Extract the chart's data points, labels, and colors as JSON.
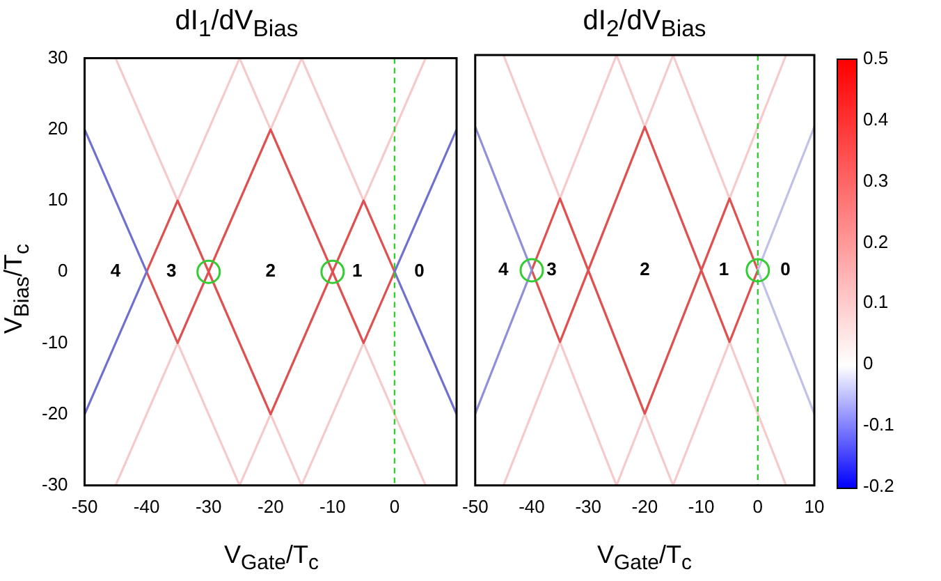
{
  "chart_data": [
    {
      "type": "line",
      "title": "dI$_{1}$/dV$_{Bias}$",
      "xlabel": "V$_{Gate}$/T$_{c}$",
      "ylabel": "V$_{Bias}$/T$_{c}$",
      "xlim": [
        -50,
        10
      ],
      "xticks": [
        -50,
        -40,
        -30,
        -20,
        -10,
        0
      ],
      "ylim": [
        -30,
        30
      ],
      "yticks": [
        -30,
        -20,
        -10,
        0,
        10,
        20,
        30
      ],
      "grid": false,
      "legend": false,
      "ref_lines": [
        {
          "axis": "x",
          "value": 0,
          "color": "#33cc33",
          "line_style": "dashed"
        }
      ],
      "annotations": [
        "4",
        "3",
        "2",
        "1",
        "0"
      ],
      "series": [
        {
          "color": "#f6caca",
          "x": [
            -15,
            -5
          ],
          "values": [
            30,
            10
          ]
        },
        {
          "color": "#f6caca",
          "x": [
            -15,
            -5
          ],
          "values": [
            -30,
            -10
          ]
        },
        {
          "color": "#f6caca",
          "x": [
            -25,
            5
          ],
          "values": [
            30,
            -30
          ]
        },
        {
          "color": "#f6caca",
          "x": [
            -25,
            5
          ],
          "values": [
            -30,
            30
          ]
        },
        {
          "color": "#f6caca",
          "x": [
            -45,
            -15
          ],
          "values": [
            30,
            -30
          ]
        },
        {
          "color": "#f6caca",
          "x": [
            -45,
            -15
          ],
          "values": [
            -30,
            30
          ]
        },
        {
          "color": "#f6caca",
          "x": [
            -35,
            -25
          ],
          "values": [
            -10,
            -30
          ]
        },
        {
          "color": "#f6caca",
          "x": [
            -35,
            -25
          ],
          "values": [
            10,
            30
          ]
        },
        {
          "color": "#e05050",
          "x": [
            -40,
            -35,
            -30,
            -20,
            -10,
            -5,
            0
          ],
          "values": [
            0,
            10,
            0,
            20,
            0,
            10,
            0
          ]
        },
        {
          "color": "#e05050",
          "x": [
            -40,
            -35,
            -30,
            -20,
            -10,
            -5,
            0
          ],
          "values": [
            0,
            -10,
            0,
            -20,
            0,
            -10,
            0
          ]
        },
        {
          "color": "#7070d0",
          "x": [
            -50,
            -40,
            -50
          ],
          "values": [
            20,
            0,
            -20
          ]
        },
        {
          "color": "#7070d0",
          "x": [
            10,
            0,
            10
          ],
          "values": [
            20,
            0,
            -20
          ]
        },
        {
          "type": "scatter",
          "marker": "circle",
          "color": "#33cc33",
          "x": [
            -30,
            -10
          ],
          "values": [
            0,
            0
          ]
        }
      ]
    },
    {
      "type": "line",
      "title": "dI$_{2}$/dV$_{Bias}$",
      "xlabel": "V$_{Gate}$/T$_{c}$",
      "xlim": [
        -50,
        10
      ],
      "xticks": [
        -50,
        -40,
        -30,
        -20,
        -10,
        0,
        10
      ],
      "ylim": [
        -30,
        30
      ],
      "yticks": [
        -30,
        -20,
        -10,
        0,
        10,
        20,
        30
      ],
      "tick_labels": "x",
      "grid": false,
      "legend": false,
      "clim": [
        -0.2,
        0.5
      ],
      "cticks": [
        -0.2,
        -0.1,
        0,
        0.1,
        0.2,
        0.3,
        0.4,
        0.5
      ],
      "ref_lines": [
        {
          "axis": "x",
          "value": 0,
          "color": "#33cc33",
          "line_style": "dashed"
        }
      ],
      "annotations": [
        "4",
        "3",
        "2",
        "1",
        "0"
      ],
      "series": [
        {
          "color": "#f6caca",
          "x": [
            -15,
            -5
          ],
          "values": [
            30,
            10
          ]
        },
        {
          "color": "#f6caca",
          "x": [
            -15,
            -5
          ],
          "values": [
            -30,
            -10
          ]
        },
        {
          "color": "#f6caca",
          "x": [
            -25,
            5
          ],
          "values": [
            30,
            -30
          ]
        },
        {
          "color": "#f6caca",
          "x": [
            -25,
            5
          ],
          "values": [
            -30,
            30
          ]
        },
        {
          "color": "#f6caca",
          "x": [
            -45,
            -15
          ],
          "values": [
            30,
            -30
          ]
        },
        {
          "color": "#f6caca",
          "x": [
            -45,
            -15
          ],
          "values": [
            -30,
            30
          ]
        },
        {
          "color": "#f6caca",
          "x": [
            -35,
            -25
          ],
          "values": [
            -10,
            -30
          ]
        },
        {
          "color": "#f6caca",
          "x": [
            -35,
            -25
          ],
          "values": [
            10,
            30
          ]
        },
        {
          "color": "#e05050",
          "x": [
            -40,
            -35,
            -30,
            -20,
            -10,
            -5,
            0
          ],
          "values": [
            0,
            10,
            0,
            20,
            0,
            10,
            0
          ]
        },
        {
          "color": "#e05050",
          "x": [
            -40,
            -35,
            -30,
            -20,
            -10,
            -5,
            0
          ],
          "values": [
            0,
            -10,
            0,
            -20,
            0,
            -10,
            0
          ]
        },
        {
          "color": "#9090d8",
          "x": [
            -50,
            -40,
            -50
          ],
          "values": [
            20,
            0,
            -20
          ]
        },
        {
          "color": "#c0c0e8",
          "x": [
            10,
            0,
            10
          ],
          "values": [
            20,
            0,
            -20
          ]
        },
        {
          "type": "scatter",
          "marker": "circle",
          "color": "#33cc33",
          "x": [
            -40,
            0
          ],
          "values": [
            0,
            0
          ]
        }
      ]
    }
  ]
}
